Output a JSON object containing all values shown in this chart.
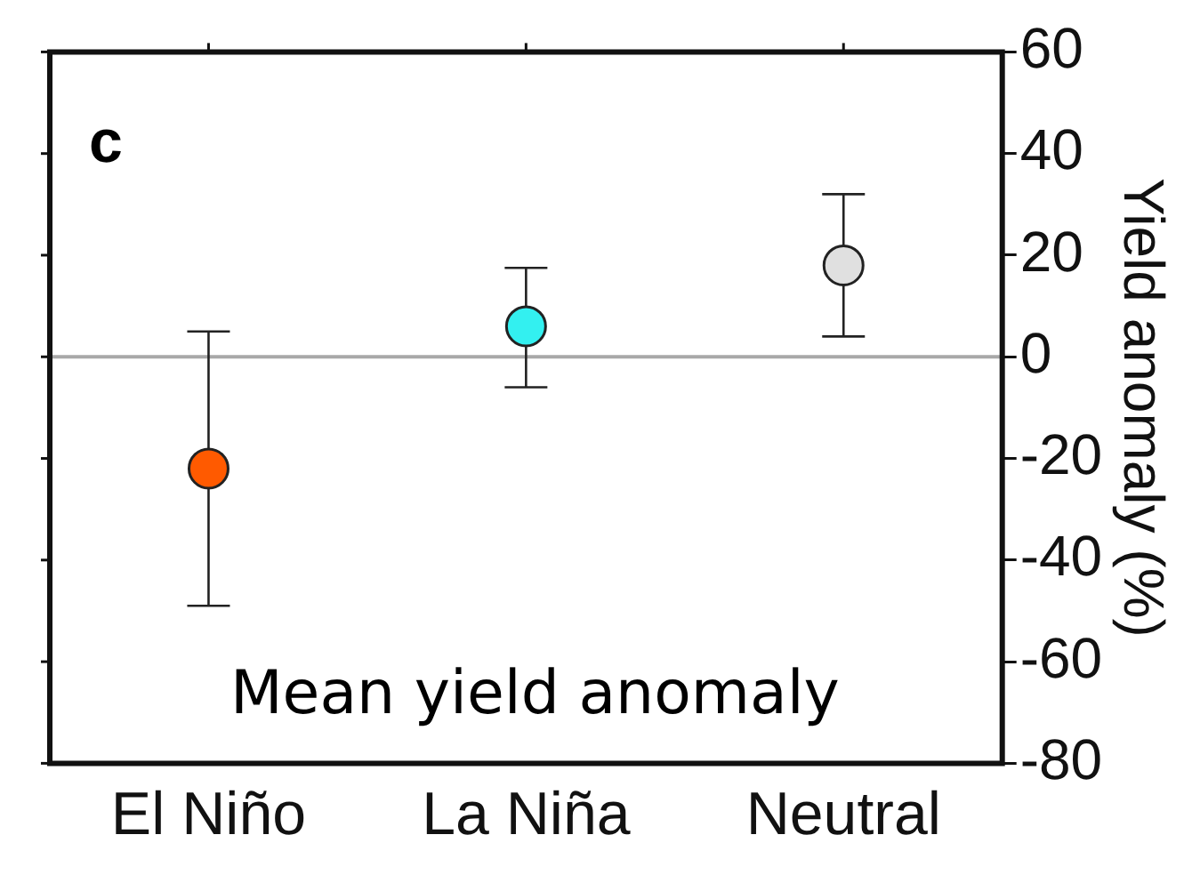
{
  "chart_data": {
    "type": "scatter",
    "categories": [
      "El Niño",
      "La Niña",
      "Neutral"
    ],
    "values": [
      -22,
      6,
      18
    ],
    "errors": [
      [
        -49,
        5
      ],
      [
        -6,
        17.5
      ],
      [
        4,
        32
      ]
    ],
    "colors": [
      "#ff5a00",
      "#33f0f0",
      "#e0e0e0"
    ],
    "ylabel": "Yield anomaly (%)",
    "ylim": [
      -80,
      60
    ],
    "yticks": [
      -80,
      -60,
      -40,
      -20,
      0,
      20,
      40,
      60
    ],
    "ref_lines": [
      {
        "axis": "y",
        "value": 0,
        "color": "#a8a8a8"
      }
    ],
    "annotations": [
      "c",
      "Mean yield anomaly"
    ],
    "marker": "circle",
    "grid": false,
    "legend": false
  }
}
